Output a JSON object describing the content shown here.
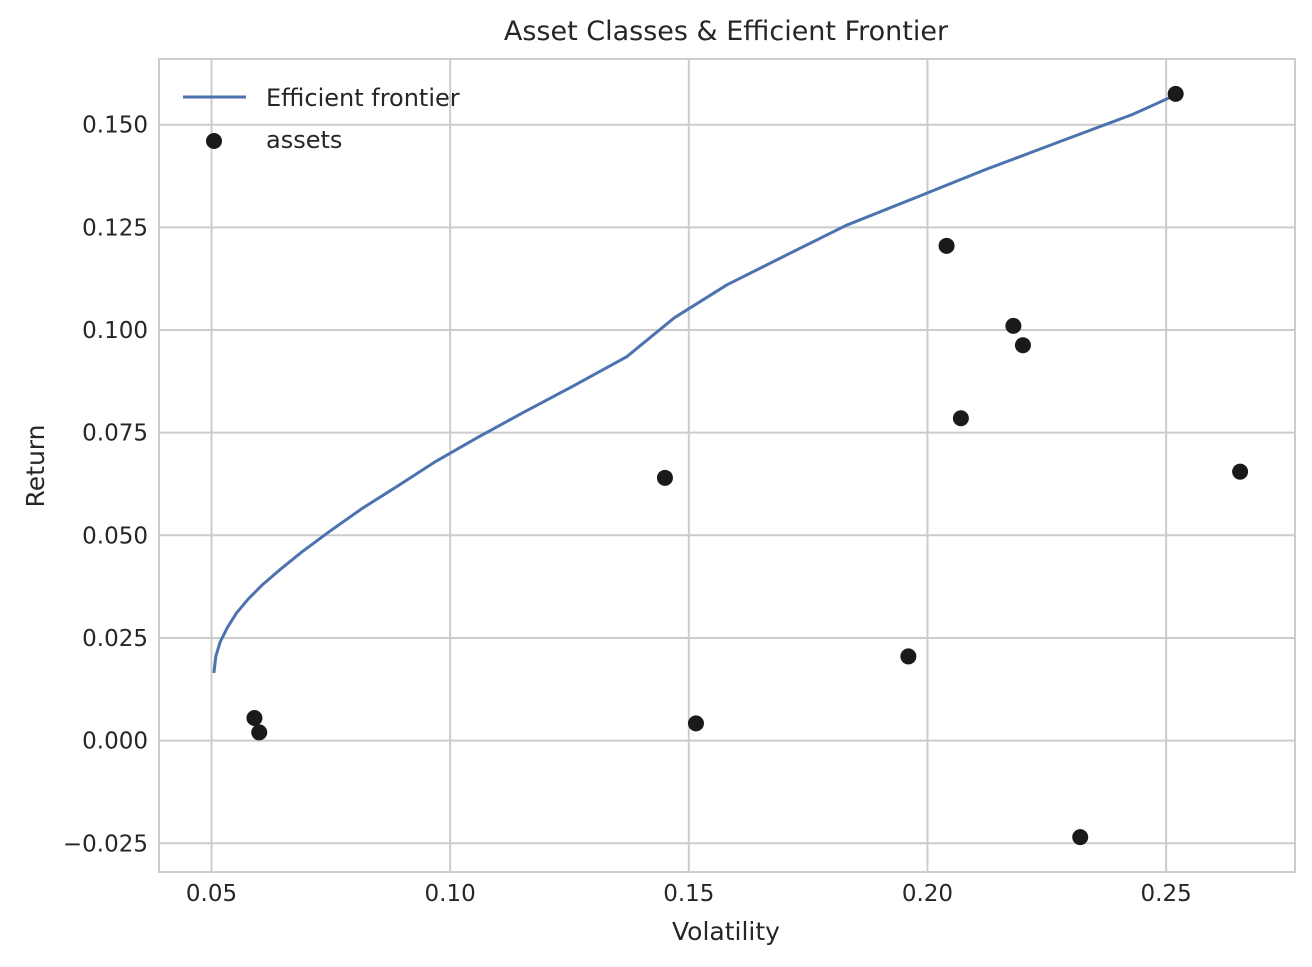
{
  "chart_data": {
    "type": "scatter",
    "title": "Asset Classes & Efficient Frontier",
    "xlabel": "Volatility",
    "ylabel": "Return",
    "xlim": [
      0.039,
      0.277
    ],
    "ylim": [
      -0.032,
      0.166
    ],
    "xticks": [
      0.05,
      0.1,
      0.15,
      0.2,
      0.25
    ],
    "xtick_labels": [
      "0.05",
      "0.10",
      "0.15",
      "0.20",
      "0.25"
    ],
    "yticks": [
      -0.025,
      0.0,
      0.025,
      0.05,
      0.075,
      0.1,
      0.125,
      0.15
    ],
    "ytick_labels": [
      "−0.025",
      "0.000",
      "0.025",
      "0.050",
      "0.075",
      "0.100",
      "0.125",
      "0.150"
    ],
    "grid": true,
    "legend_position": "top-left",
    "series": [
      {
        "name": "Efficient frontier",
        "kind": "line",
        "color": "#4c72b0",
        "x": [
          0.0505,
          0.0509,
          0.0518,
          0.0533,
          0.0552,
          0.0577,
          0.0607,
          0.0642,
          0.069,
          0.0748,
          0.0815,
          0.089,
          0.097,
          0.106,
          0.1155,
          0.126,
          0.137,
          0.147,
          0.158,
          0.17,
          0.183,
          0.197,
          0.212,
          0.228,
          0.243,
          0.2515
        ],
        "y": [
          0.0165,
          0.0205,
          0.024,
          0.0275,
          0.031,
          0.0345,
          0.038,
          0.0415,
          0.046,
          0.051,
          0.0565,
          0.062,
          0.068,
          0.074,
          0.08,
          0.0865,
          0.0935,
          0.103,
          0.111,
          0.118,
          0.1255,
          0.132,
          0.139,
          0.146,
          0.1525,
          0.157
        ]
      },
      {
        "name": "assets",
        "kind": "scatter",
        "color": "#1a1a1a",
        "x": [
          0.059,
          0.06,
          0.145,
          0.1515,
          0.196,
          0.204,
          0.207,
          0.218,
          0.22,
          0.232,
          0.252,
          0.2655
        ],
        "y": [
          0.0055,
          0.002,
          0.064,
          0.0042,
          0.0205,
          0.1205,
          0.0785,
          0.101,
          0.0963,
          -0.0235,
          0.1575,
          0.0655
        ]
      }
    ]
  }
}
